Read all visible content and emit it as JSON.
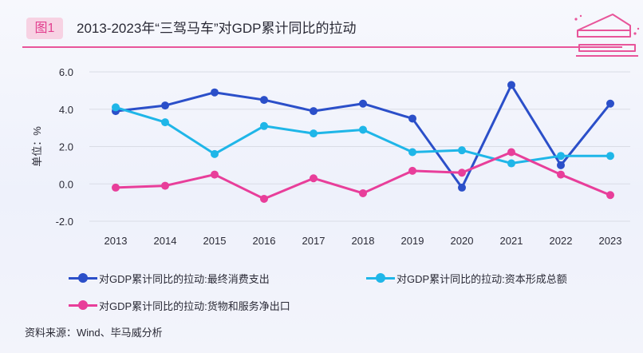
{
  "header": {
    "badge": "图1",
    "title": "2013-2023年“三驾马车”对GDP累计同比的拉动"
  },
  "chart_data": {
    "type": "line",
    "categories": [
      "2013",
      "2014",
      "2015",
      "2016",
      "2017",
      "2018",
      "2019",
      "2020",
      "2021",
      "2022",
      "2023"
    ],
    "series": [
      {
        "name": "对GDP累计同比的拉动:最终消费支出",
        "color": "#2b4fc9",
        "values": [
          3.9,
          4.2,
          4.9,
          4.5,
          3.9,
          4.3,
          3.5,
          -0.2,
          5.3,
          1.0,
          4.3
        ]
      },
      {
        "name": "对GDP累计同比的拉动:资本形成总额",
        "color": "#1fb6e8",
        "values": [
          4.1,
          3.3,
          1.6,
          3.1,
          2.7,
          2.9,
          1.7,
          1.8,
          1.1,
          1.5,
          1.5
        ]
      },
      {
        "name": "对GDP累计同比的拉动:货物和服务净出口",
        "color": "#e83e9a",
        "values": [
          -0.2,
          -0.1,
          0.5,
          -0.8,
          0.3,
          -0.5,
          0.7,
          0.6,
          1.7,
          0.5,
          -0.6
        ]
      }
    ],
    "ylabel": "单位：%",
    "xlabel": "",
    "ylim": [
      -2.0,
      6.0
    ],
    "yticks": [
      "6.0",
      "4.0",
      "2.0",
      "0.0",
      "-2.0"
    ],
    "ytick_values": [
      6,
      4,
      2,
      0,
      -2
    ],
    "grid": true,
    "legend_position": "bottom"
  },
  "footer": {
    "source": "资料来源：Wind、毕马威分析"
  }
}
